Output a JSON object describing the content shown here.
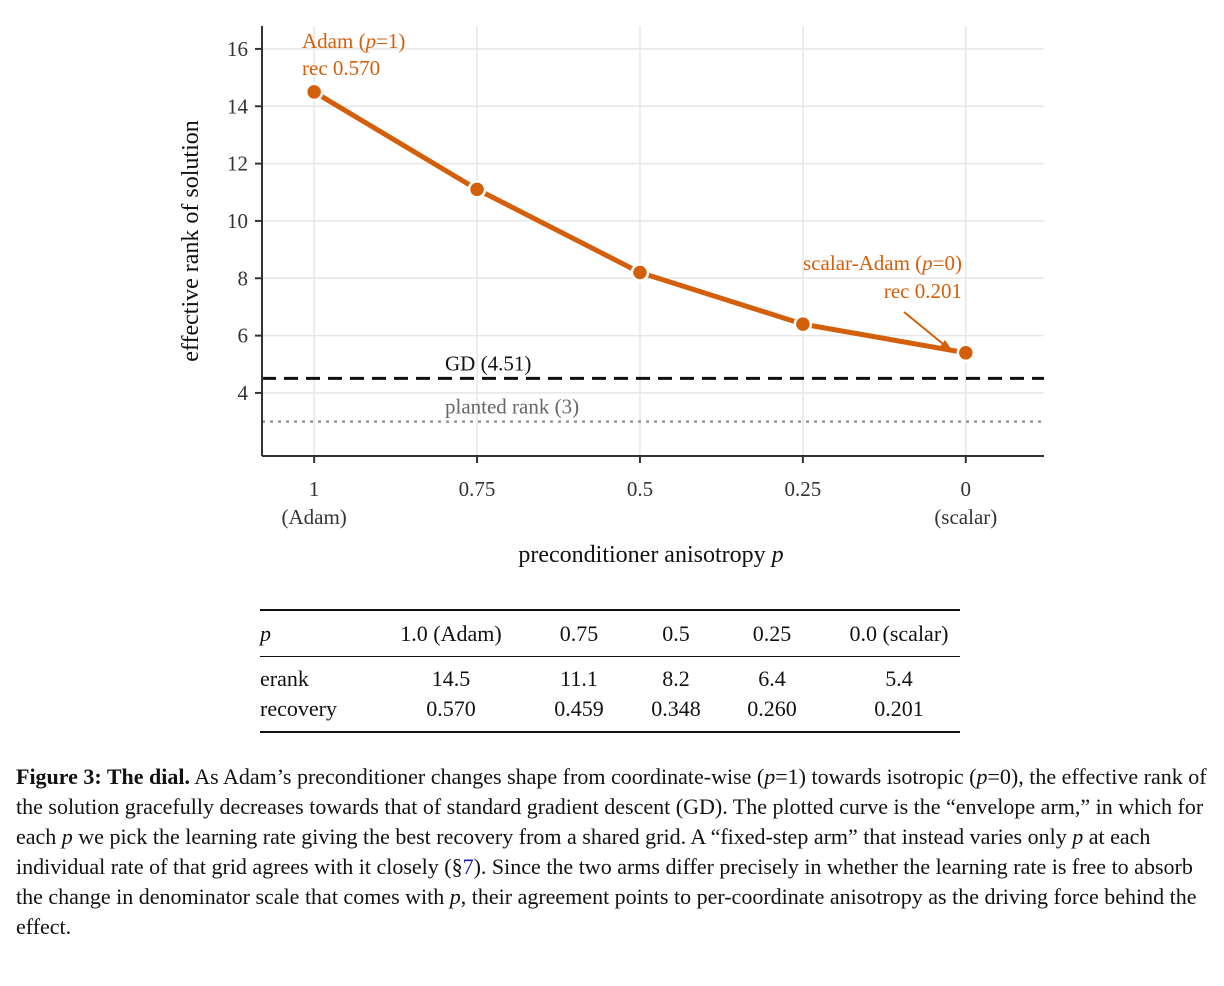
{
  "chart_data": {
    "type": "line",
    "xlabel_text": "preconditioner anisotropy ",
    "xlabel_var": "p",
    "ylabel": "effective rank of solution",
    "x": [
      1,
      0.75,
      0.5,
      0.25,
      0
    ],
    "x_tick_labels": [
      "1",
      "0.75",
      "0.5",
      "0.25",
      "0"
    ],
    "x_tick_sublabels": [
      "(Adam)",
      "",
      "",
      "",
      "(scalar)"
    ],
    "xlim": [
      1.08,
      -0.12
    ],
    "ylim": [
      1.8,
      16.8
    ],
    "y_ticks": [
      4,
      6,
      8,
      10,
      12,
      14,
      16
    ],
    "grid": true,
    "line_color": "#d45f0a",
    "series": [
      {
        "values": [
          14.5,
          11.1,
          8.2,
          6.4,
          5.4
        ]
      }
    ],
    "reference_lines": [
      {
        "label": "GD  (4.51)",
        "value": 4.51,
        "style": "dashed",
        "color": "#111111"
      },
      {
        "label": "planted rank  (3)",
        "value": 3,
        "style": "dotted",
        "color": "#999999"
      }
    ],
    "annotations": [
      {
        "pre": "Adam (",
        "var": "p",
        "post": "=1)",
        "line2": "rec 0.570"
      },
      {
        "pre": "scalar-Adam (",
        "var": "p",
        "post": "=0)",
        "line2": "rec 0.201"
      }
    ]
  },
  "table": {
    "header": [
      "p",
      "1.0 (Adam)",
      "0.75",
      "0.5",
      "0.25",
      "0.0 (scalar)"
    ],
    "rows": [
      [
        "erank",
        "14.5",
        "11.1",
        "8.2",
        "6.4",
        "5.4"
      ],
      [
        "recovery",
        "0.570",
        "0.459",
        "0.348",
        "0.260",
        "0.201"
      ]
    ]
  },
  "caption": {
    "label": "Figure 3: The dial.",
    "t1": " As Adam’s preconditioner changes shape from coordinate-wise (",
    "v1": "p",
    "t2": "=1) towards isotropic (",
    "v2": "p",
    "t3": "=0), the effective rank of the solution gracefully decreases towards that of standard gradient descent (GD). The plotted curve is the “envelope arm,” in which for each ",
    "v3": "p",
    "t4": " we pick the learning rate giving the best recovery from a shared grid. A “fixed-step arm” that instead varies only ",
    "v4": "p",
    "t5": " at each individual rate of that grid agrees with it closely (§",
    "ref": "7",
    "t6": "). Since the two arms differ precisely in whether the learning rate is free to absorb the change in denominator scale that comes with ",
    "v5": "p",
    "t7": ", their agreement points to per-coordinate anisotropy as the driving force behind the effect."
  }
}
